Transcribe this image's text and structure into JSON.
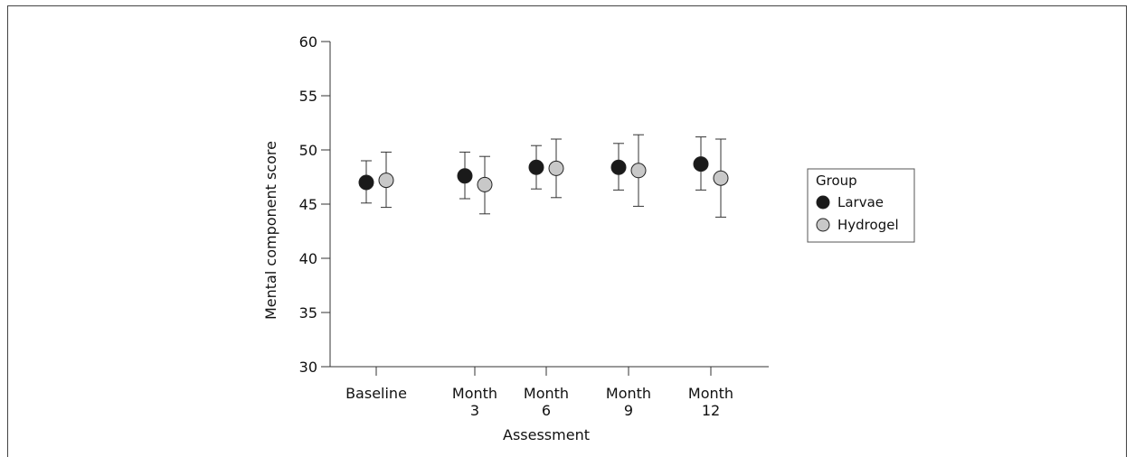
{
  "chart_data": {
    "type": "scatter",
    "xlabel": "Assessment",
    "ylabel": "Mental component score",
    "categories": [
      [
        "Baseline"
      ],
      [
        "Month",
        "3"
      ],
      [
        "Month",
        "6"
      ],
      [
        "Month",
        "9"
      ],
      [
        "Month",
        "12"
      ]
    ],
    "ylim": [
      30,
      60
    ],
    "yticks": [
      30,
      35,
      40,
      45,
      50,
      55,
      60
    ],
    "grid": false,
    "legend": {
      "title": "Group",
      "placement": "right"
    },
    "series": [
      {
        "name": "Larvae",
        "color": "#1a1a1a",
        "values": [
          47.0,
          47.6,
          48.4,
          48.4,
          48.7
        ],
        "lower": [
          45.1,
          45.5,
          46.4,
          46.3,
          46.3
        ],
        "upper": [
          49.0,
          49.8,
          50.4,
          50.6,
          51.2
        ]
      },
      {
        "name": "Hydrogel",
        "color": "#c8c8c8",
        "values": [
          47.2,
          46.8,
          48.3,
          48.1,
          47.4
        ],
        "lower": [
          44.7,
          44.1,
          45.6,
          44.8,
          43.8
        ],
        "upper": [
          49.8,
          49.4,
          51.0,
          51.4,
          51.0
        ]
      }
    ]
  }
}
